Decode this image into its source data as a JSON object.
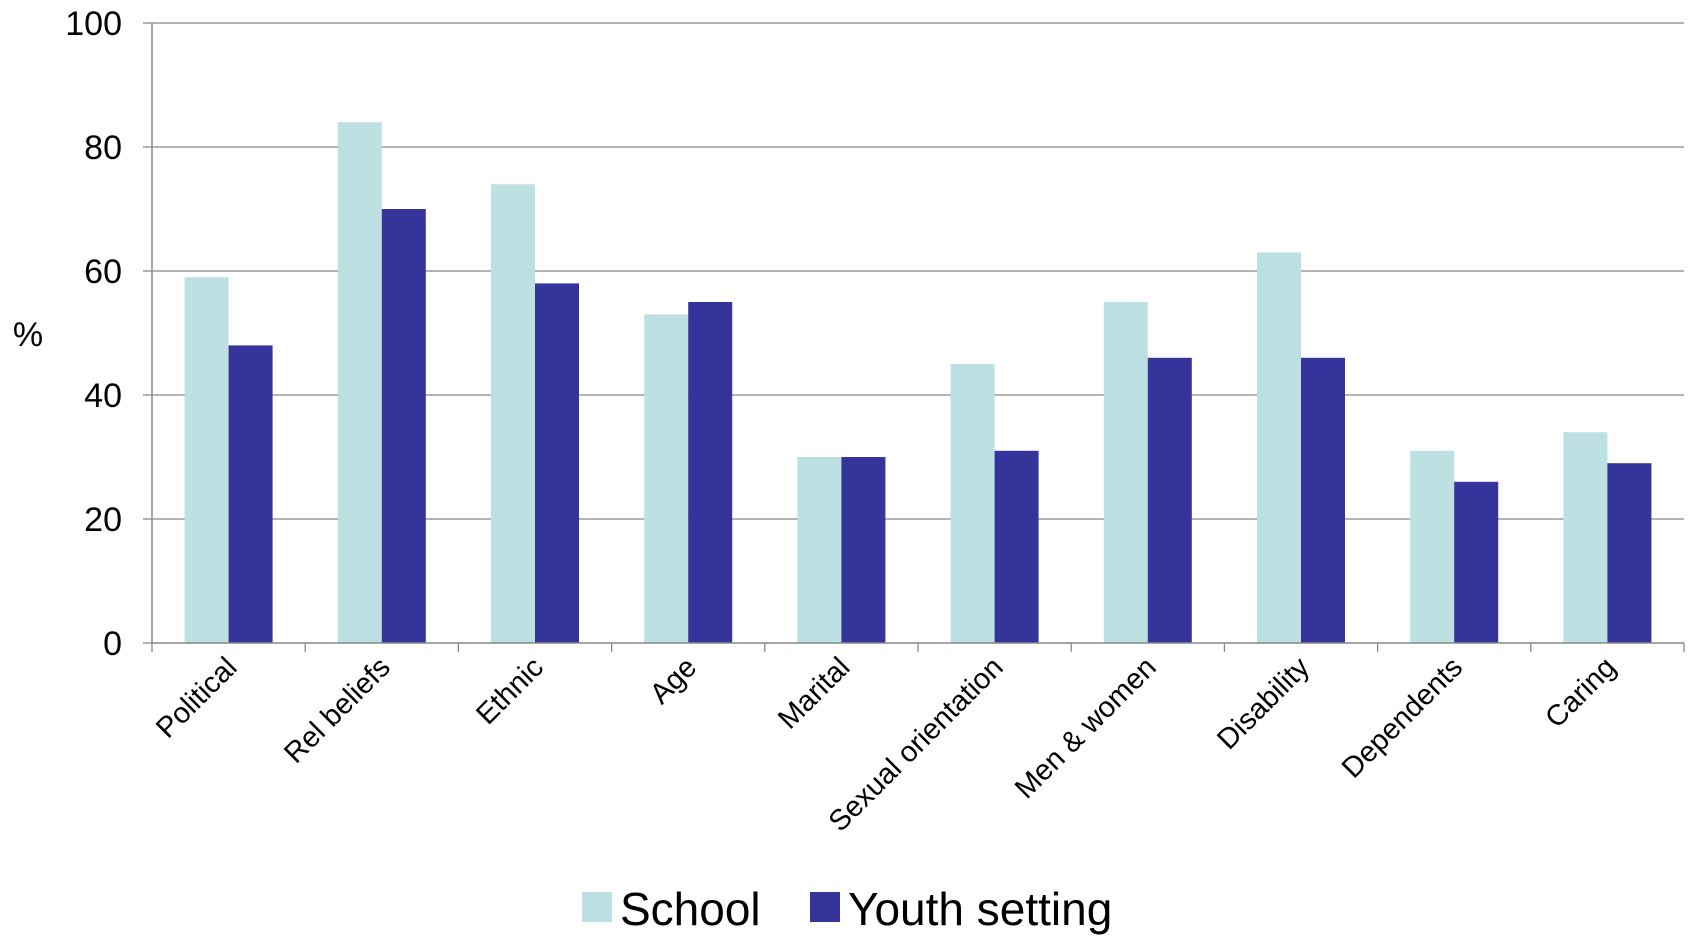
{
  "chart_data": {
    "type": "bar",
    "title": "",
    "xlabel": "",
    "ylabel": "%",
    "ylim": [
      0,
      100
    ],
    "yticks": [
      0,
      20,
      40,
      60,
      80,
      100
    ],
    "grid": true,
    "legend_position": "bottom",
    "categories": [
      "Political",
      "Rel beliefs",
      "Ethnic",
      "Age",
      "Marital",
      "Sexual orientation",
      "Men & women",
      "Disability",
      "Dependents",
      "Caring"
    ],
    "series": [
      {
        "name": "School",
        "color": "#bde0e3",
        "values": [
          59,
          84,
          74,
          53,
          30,
          45,
          55,
          63,
          31,
          34
        ]
      },
      {
        "name": "Youth setting",
        "color": "#35349a",
        "values": [
          48,
          70,
          58,
          55,
          30,
          31,
          46,
          46,
          26,
          29
        ]
      }
    ]
  }
}
